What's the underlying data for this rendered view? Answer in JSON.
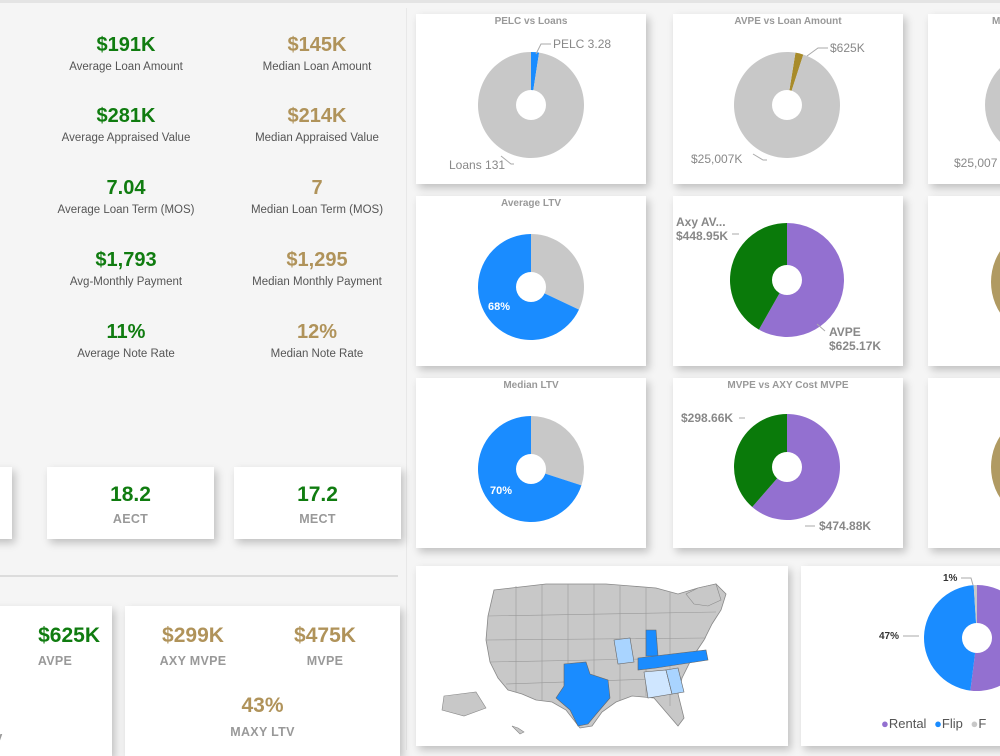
{
  "metrics": [
    {
      "value": "$191K",
      "label": "Average Loan Amount"
    },
    {
      "value": "$145K",
      "label": "Median Loan Amount"
    },
    {
      "value": "$281K",
      "label": "Average Appraised Value"
    },
    {
      "value": "$214K",
      "label": "Median Appraised Value"
    },
    {
      "value": "7.04",
      "label": "Average Loan Term (MOS)"
    },
    {
      "value": "7",
      "label": "Median Loan Term (MOS)"
    },
    {
      "value": "$1,793",
      "label": "Avg-Monthly Payment"
    },
    {
      "value": "$1,295",
      "label": "Median Monthly Payment"
    },
    {
      "value": "11%",
      "label": "Average Note Rate"
    },
    {
      "value": "12%",
      "label": "Median Note Rate"
    }
  ],
  "kpi_cards": {
    "aect": {
      "value": "18.2",
      "label": "AECT"
    },
    "mect": {
      "value": "17.2",
      "label": "MECT"
    }
  },
  "bottom_left": {
    "avpe": {
      "value": "$625K",
      "label": "AVPE"
    },
    "axy_mvpe": {
      "value": "$299K",
      "label": "AXY MVPE"
    },
    "mvpe": {
      "value": "$475K",
      "label": "MVPE"
    },
    "maxy_ltv": {
      "value": "43%",
      "label": "MAXY LTV"
    },
    "partial_label": "V"
  },
  "charts": {
    "pelc_vs_loans": {
      "title": "PELC vs Loans",
      "label_a": "PELC 3.28",
      "label_b": "Loans 131"
    },
    "avpe_vs_loan": {
      "title": "AVPE vs Loan Amount",
      "label_a": "$625K",
      "label_b": "$25,007K"
    },
    "third_top": {
      "title": "M",
      "label_b": "$25,007"
    },
    "avg_ltv": {
      "title": "Average LTV",
      "label": "68%"
    },
    "axy_avpe": {
      "label_a1": "Axy AV...",
      "label_a2": "$448.95K",
      "label_b1": "AVPE",
      "label_b2": "$625.17K"
    },
    "median_ltv": {
      "title": "Median LTV",
      "label": "70%"
    },
    "mvpe_vs_axy": {
      "title": "MVPE vs AXY Cost MVPE",
      "label_a": "$298.66K",
      "label_b": "$474.88K"
    },
    "loan_type": {
      "label_top": "1%",
      "label_left": "47%"
    }
  },
  "legend": [
    {
      "name": "Rental",
      "color": "#9370d0"
    },
    {
      "name": "Flip",
      "color": "#1a8cff"
    },
    {
      "name": "F",
      "color": "#c8c8c8"
    }
  ],
  "colors": {
    "green": "#107c10",
    "gold": "#b0935a",
    "blue": "#1a8cff",
    "purple": "#9370d0",
    "grey": "#c8c8c8",
    "dark_green": "#0a7a0a",
    "olive": "#a88b2a"
  },
  "chart_data": [
    {
      "type": "pie",
      "title": "PELC vs Loans",
      "categories": [
        "PELC",
        "Loans"
      ],
      "values": [
        3.28,
        131
      ]
    },
    {
      "type": "pie",
      "title": "AVPE vs Loan Amount",
      "categories": [
        "AVPE",
        "Loan Amount"
      ],
      "values": [
        625,
        25007
      ]
    },
    {
      "type": "pie",
      "title": "Average LTV",
      "values": [
        68,
        32
      ]
    },
    {
      "type": "pie",
      "categories": [
        "Axy AV...",
        "AVPE"
      ],
      "values": [
        448.95,
        625.17
      ]
    },
    {
      "type": "pie",
      "title": "Median LTV",
      "values": [
        70,
        30
      ]
    },
    {
      "type": "pie",
      "title": "MVPE vs AXY Cost MVPE",
      "values": [
        298.66,
        474.88
      ]
    },
    {
      "type": "pie",
      "categories": [
        "Rental",
        "Flip",
        "F"
      ],
      "values": [
        52,
        47,
        1
      ]
    }
  ]
}
